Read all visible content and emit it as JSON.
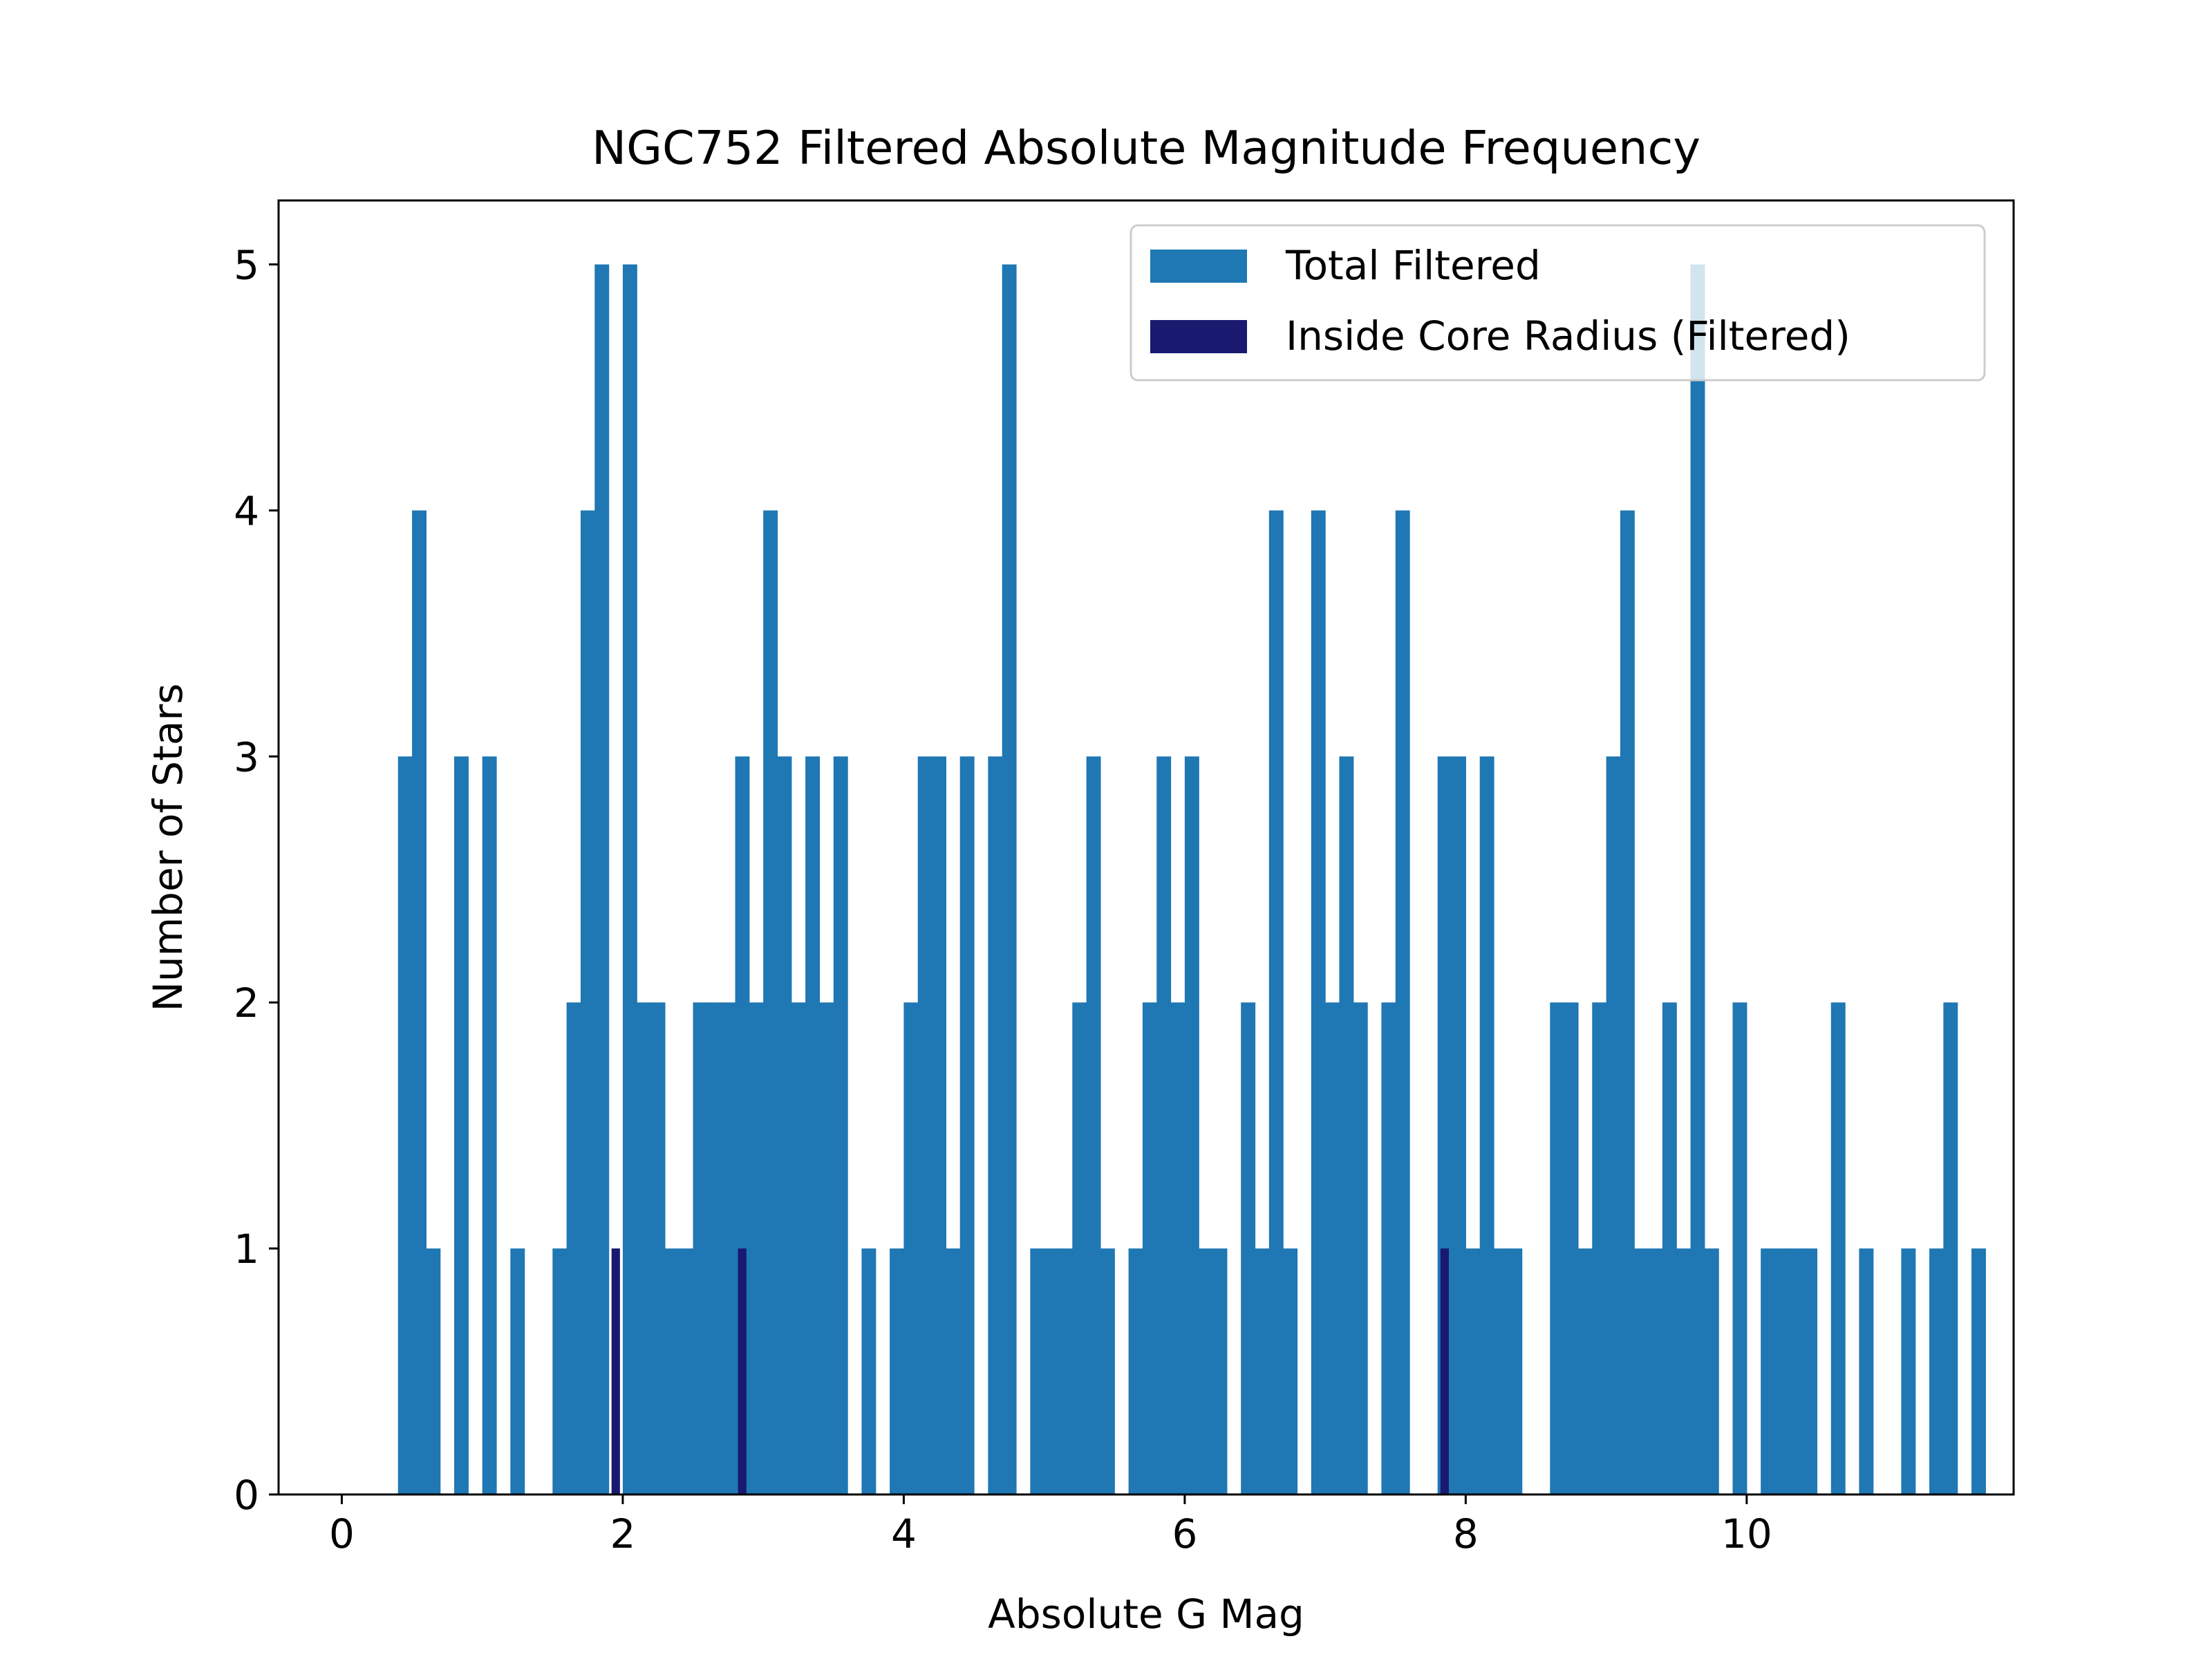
{
  "chart_data": {
    "type": "bar",
    "title": "NGC752 Filtered Absolute Magnitude Frequency",
    "xlabel": "Absolute G Mag",
    "ylabel": "Number of Stars",
    "xlim": [
      -0.45,
      11.9
    ],
    "ylim": [
      0,
      5.26
    ],
    "xticks": [
      0,
      2,
      4,
      6,
      8,
      10
    ],
    "xtick_labels": [
      "0",
      "2",
      "4",
      "6",
      "8",
      "10"
    ],
    "yticks": [
      0,
      1,
      2,
      3,
      4,
      5
    ],
    "ytick_labels": [
      "0",
      "1",
      "2",
      "3",
      "4",
      "5"
    ],
    "grid": false,
    "legend_position": "top-right",
    "bin_start": 0.4,
    "bin_width": 0.1,
    "series": [
      {
        "name": "Total Filtered",
        "color": "#1f77b4",
        "values": [
          3,
          4,
          1,
          0,
          3,
          0,
          3,
          0,
          1,
          0,
          0,
          1,
          2,
          4,
          5,
          0,
          5,
          2,
          2,
          1,
          1,
          2,
          2,
          2,
          3,
          2,
          4,
          3,
          2,
          3,
          2,
          3,
          0,
          1,
          0,
          1,
          2,
          3,
          3,
          1,
          3,
          0,
          3,
          5,
          0,
          1,
          1,
          1,
          2,
          3,
          1,
          0,
          1,
          2,
          3,
          2,
          3,
          1,
          1,
          0,
          2,
          1,
          4,
          1,
          0,
          4,
          2,
          3,
          2,
          0,
          2,
          4,
          0,
          0,
          3,
          3,
          1,
          3,
          1,
          1,
          0,
          0,
          2,
          2,
          1,
          2,
          3,
          4,
          1,
          1,
          2,
          1,
          5,
          1,
          0,
          2,
          0,
          1,
          1,
          1,
          1,
          0,
          2,
          0,
          1,
          0,
          0,
          1,
          0,
          1,
          2,
          0,
          1
        ]
      },
      {
        "name": "Inside Core Radius (Filtered)",
        "color": "#191970",
        "points": [
          {
            "x": 1.95,
            "value": 1
          },
          {
            "x": 2.85,
            "value": 1
          },
          {
            "x": 7.85,
            "value": 1
          }
        ]
      }
    ]
  }
}
